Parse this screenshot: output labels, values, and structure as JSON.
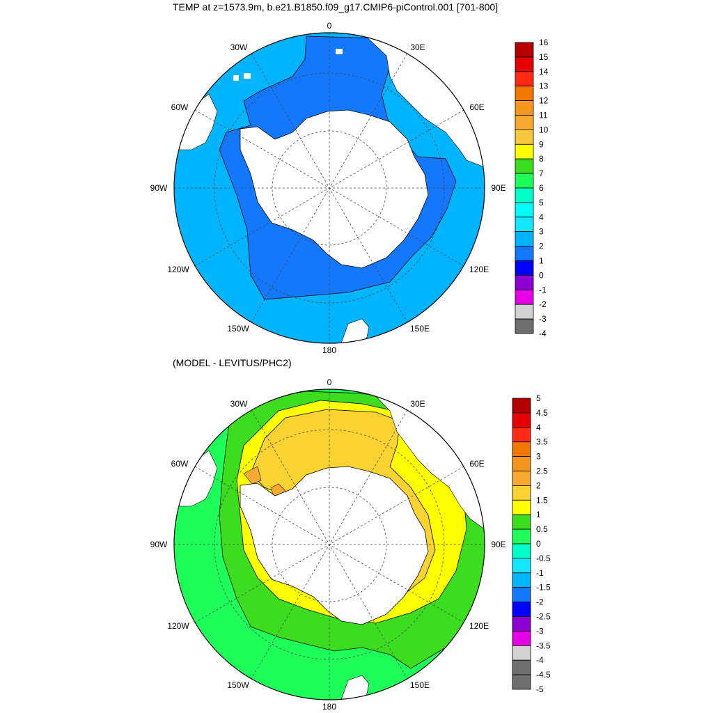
{
  "top_panel": {
    "title": "TEMP at z=1573.9m, b.e21.B1850.f09_g17.CMIP6-piControl.001 [701-800]",
    "lon_labels": [
      "0",
      "30E",
      "60E",
      "90E",
      "120E",
      "150E",
      "180",
      "150W",
      "120W",
      "90W",
      "60W",
      "30W"
    ],
    "colorbar": {
      "labels": [
        "16",
        "15",
        "14",
        "13",
        "12",
        "11",
        "10",
        "9",
        "8",
        "7",
        "6",
        "5",
        "4",
        "3",
        "2",
        "1",
        "0",
        "-1",
        "-2",
        "-3",
        "-4"
      ],
      "colors": [
        "#b40000",
        "#e60000",
        "#ff2a14",
        "#f07800",
        "#f5961e",
        "#faaa32",
        "#fac83c",
        "#ffff00",
        "#3cdc1e",
        "#1eff5a",
        "#00ffc8",
        "#00ffff",
        "#14e6ff",
        "#00b4ff",
        "#1478ff",
        "#0000ff",
        "#8c00d2",
        "#e600e6",
        "#d2d2d2",
        "#6e6e6e"
      ]
    }
  },
  "bottom_panel": {
    "title": "(MODEL - LEVITUS/PHC2)",
    "lon_labels": [
      "0",
      "30E",
      "60E",
      "90E",
      "120E",
      "150E",
      "180",
      "150W",
      "120W",
      "90W",
      "60W",
      "30W"
    ],
    "colorbar": {
      "labels": [
        "5",
        "4.5",
        "4",
        "3.5",
        "3",
        "2.5",
        "2",
        "1.5",
        "1",
        "0.5",
        "0",
        "-0.5",
        "-1",
        "-1.5",
        "-2",
        "-2.5",
        "-3",
        "-3.5",
        "-4",
        "-4.5",
        "-5"
      ],
      "colors": [
        "#b40000",
        "#e60000",
        "#ff2a14",
        "#f07800",
        "#f5961e",
        "#faaa32",
        "#fad232",
        "#ffff00",
        "#3cdc1e",
        "#1eff5a",
        "#00ffc8",
        "#14e6ff",
        "#00b4ff",
        "#1478ff",
        "#0000ff",
        "#8c00d2",
        "#e600e6",
        "#d2d2d2",
        "#6e6e6e",
        "#6e6e6e"
      ]
    }
  }
}
